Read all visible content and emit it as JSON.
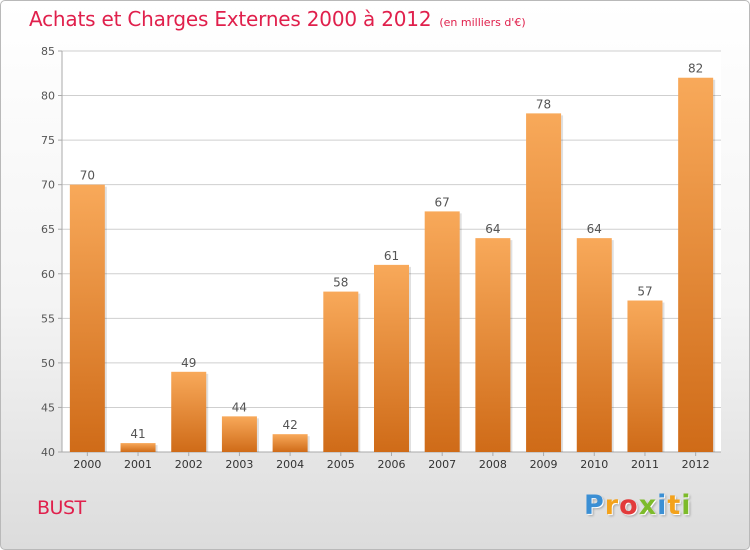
{
  "chart_data": {
    "type": "bar",
    "title": "Achats et Charges Externes 2000 à 2012",
    "subtitle": "(en milliers d'€)",
    "categories": [
      "2000",
      "2001",
      "2002",
      "2003",
      "2004",
      "2005",
      "2006",
      "2007",
      "2008",
      "2009",
      "2010",
      "2011",
      "2012"
    ],
    "values": [
      70,
      41,
      49,
      44,
      42,
      58,
      61,
      67,
      64,
      78,
      64,
      57,
      82
    ],
    "ylim": [
      40,
      85
    ],
    "yticks": [
      40,
      45,
      50,
      55,
      60,
      65,
      70,
      75,
      80,
      85
    ],
    "grid": true,
    "legend": "none",
    "colors": {
      "bar_light": "#f8a95a",
      "bar_dark": "#cf6b18",
      "title": "#e0204c",
      "grid": "#cfcfcf",
      "axis": "#aaaaaa",
      "text": "#555555"
    }
  },
  "commune": "BUST",
  "logo": {
    "letters": [
      "P",
      "r",
      "o",
      "x",
      "i",
      "t",
      "i"
    ],
    "colors": [
      "#3b8fd4",
      "#f3a21b",
      "#e23b3b",
      "#7dbb2a",
      "#3b8fd4",
      "#f3a21b",
      "#7dbb2a"
    ]
  }
}
